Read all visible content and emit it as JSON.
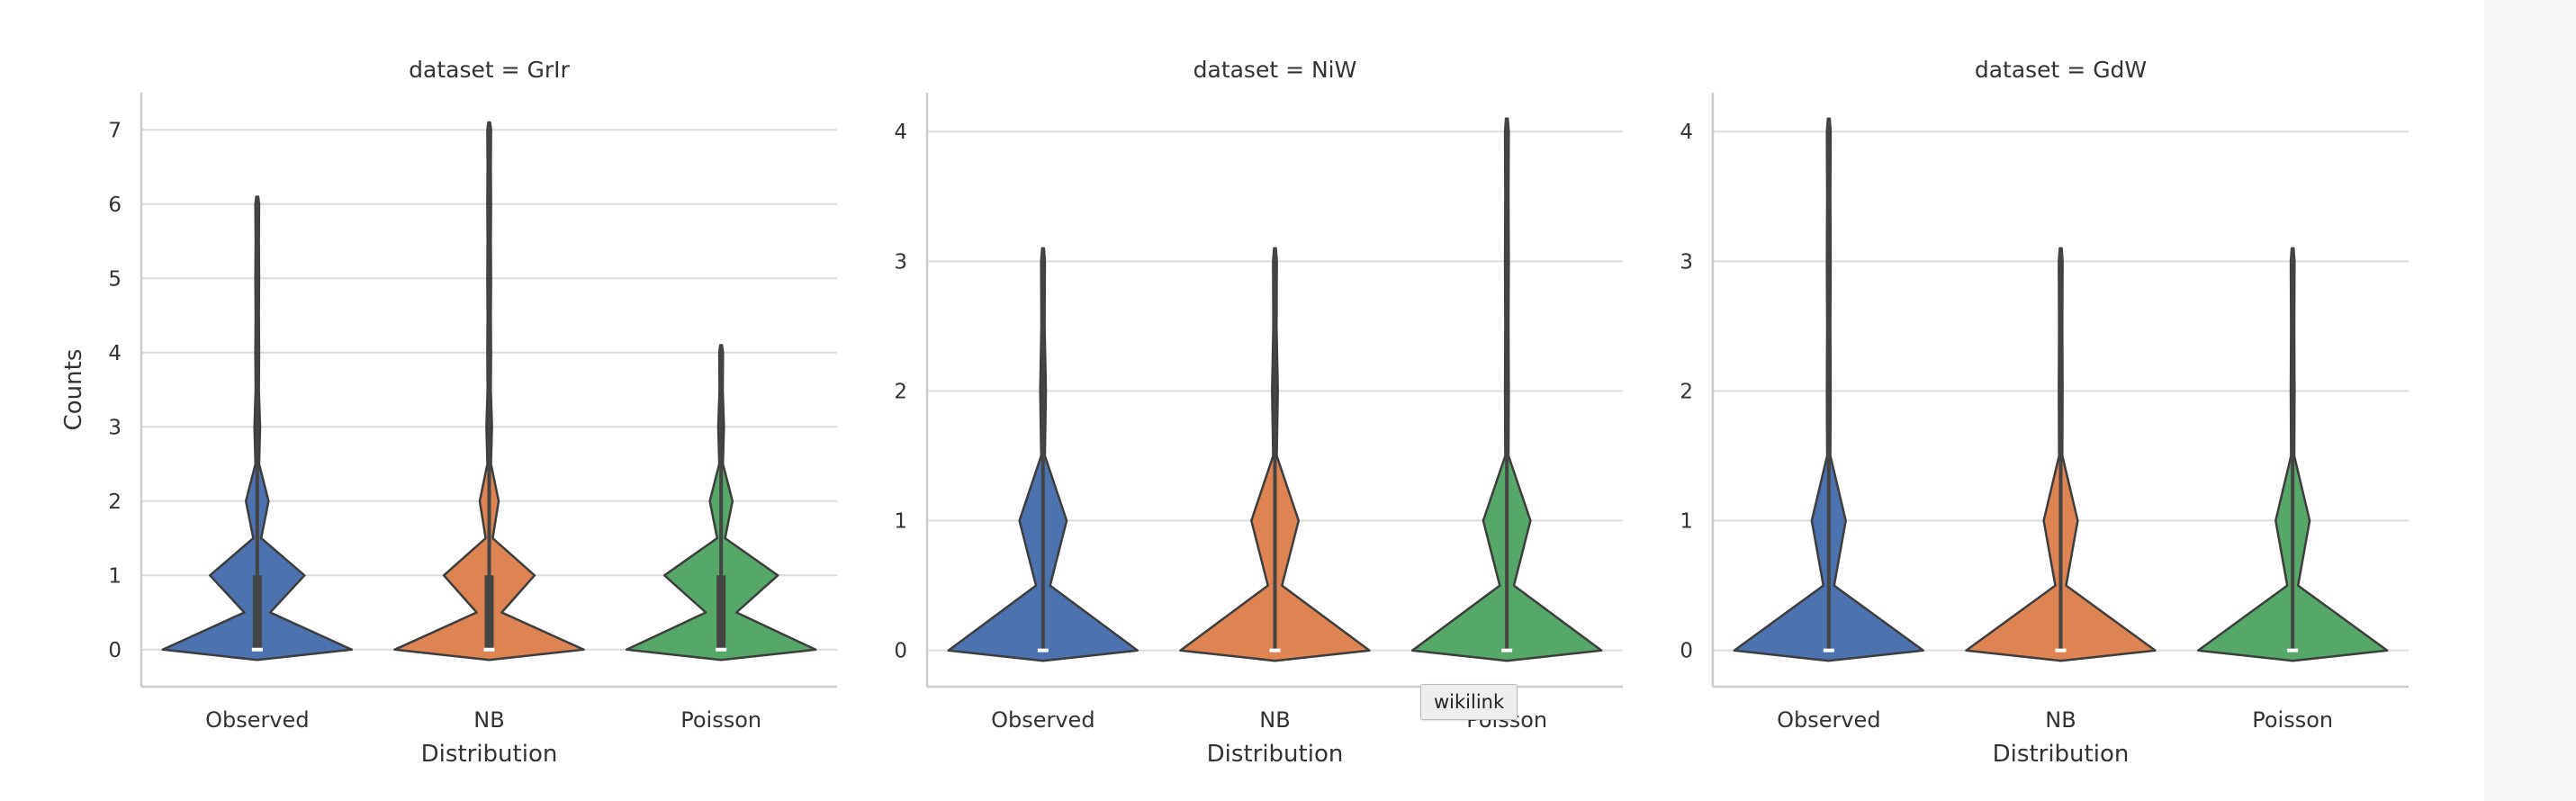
{
  "tooltip": "wikilink",
  "colors": {
    "Observed": "#4c72b0",
    "NB": "#dd8452",
    "Poisson": "#55a868"
  },
  "chart_data": [
    {
      "type": "violin",
      "title": "dataset = GrIr",
      "xlabel": "Distribution",
      "ylabel": "Counts",
      "categories": [
        "Observed",
        "NB",
        "Poisson"
      ],
      "yticks": [
        0,
        1,
        2,
        3,
        4,
        5,
        6,
        7
      ],
      "ylim": [
        -0.5,
        7.5
      ],
      "grid": true,
      "series": [
        {
          "name": "Observed",
          "max": 6.1,
          "median": 0,
          "q1": 0,
          "q3": 1,
          "density": [
            [
              0,
              1.0
            ],
            [
              1,
              0.5
            ],
            [
              2,
              0.12
            ],
            [
              3,
              0.03
            ],
            [
              4,
              0.02
            ],
            [
              5,
              0.02
            ],
            [
              6,
              0.02
            ]
          ]
        },
        {
          "name": "NB",
          "max": 7.1,
          "median": 0,
          "q1": 0,
          "q3": 1,
          "density": [
            [
              0,
              1.0
            ],
            [
              1,
              0.48
            ],
            [
              2,
              0.1
            ],
            [
              3,
              0.03
            ],
            [
              4,
              0.02
            ],
            [
              5,
              0.02
            ],
            [
              6,
              0.02
            ],
            [
              7,
              0.02
            ]
          ]
        },
        {
          "name": "Poisson",
          "max": 4.1,
          "median": 0,
          "q1": 0,
          "q3": 1,
          "density": [
            [
              0,
              1.0
            ],
            [
              1,
              0.6
            ],
            [
              2,
              0.12
            ],
            [
              3,
              0.03
            ],
            [
              4,
              0.02
            ]
          ]
        }
      ]
    },
    {
      "type": "violin",
      "title": "dataset = NiW",
      "xlabel": "Distribution",
      "ylabel": "",
      "categories": [
        "Observed",
        "NB",
        "Poisson"
      ],
      "yticks": [
        0,
        1,
        2,
        3,
        4
      ],
      "ylim": [
        -0.28,
        4.3
      ],
      "grid": true,
      "series": [
        {
          "name": "Observed",
          "max": 3.1,
          "median": 0,
          "q1": 0,
          "q3": 0,
          "density": [
            [
              0,
              1.0
            ],
            [
              1,
              0.25
            ],
            [
              2,
              0.03
            ],
            [
              3,
              0.02
            ]
          ]
        },
        {
          "name": "NB",
          "max": 3.1,
          "median": 0,
          "q1": 0,
          "q3": 0,
          "density": [
            [
              0,
              1.0
            ],
            [
              1,
              0.25
            ],
            [
              2,
              0.03
            ],
            [
              3,
              0.02
            ]
          ]
        },
        {
          "name": "Poisson",
          "max": 4.1,
          "median": 0,
          "q1": 0,
          "q3": 0,
          "density": [
            [
              0,
              1.0
            ],
            [
              1,
              0.25
            ],
            [
              2,
              0.02
            ],
            [
              3,
              0.02
            ],
            [
              4,
              0.02
            ]
          ]
        }
      ]
    },
    {
      "type": "violin",
      "title": "dataset = GdW",
      "xlabel": "Distribution",
      "ylabel": "",
      "categories": [
        "Observed",
        "NB",
        "Poisson"
      ],
      "yticks": [
        0,
        1,
        2,
        3,
        4
      ],
      "ylim": [
        -0.28,
        4.3
      ],
      "grid": true,
      "series": [
        {
          "name": "Observed",
          "max": 4.1,
          "median": 0,
          "q1": 0,
          "q3": 0,
          "density": [
            [
              0,
              1.0
            ],
            [
              1,
              0.18
            ],
            [
              2,
              0.02
            ],
            [
              3,
              0.02
            ],
            [
              4,
              0.02
            ]
          ]
        },
        {
          "name": "NB",
          "max": 3.1,
          "median": 0,
          "q1": 0,
          "q3": 0,
          "density": [
            [
              0,
              1.0
            ],
            [
              1,
              0.18
            ],
            [
              2,
              0.02
            ],
            [
              3,
              0.02
            ]
          ]
        },
        {
          "name": "Poisson",
          "max": 3.1,
          "median": 0,
          "q1": 0,
          "q3": 0,
          "density": [
            [
              0,
              1.0
            ],
            [
              1,
              0.18
            ],
            [
              2,
              0.02
            ],
            [
              3,
              0.02
            ]
          ]
        }
      ]
    }
  ]
}
